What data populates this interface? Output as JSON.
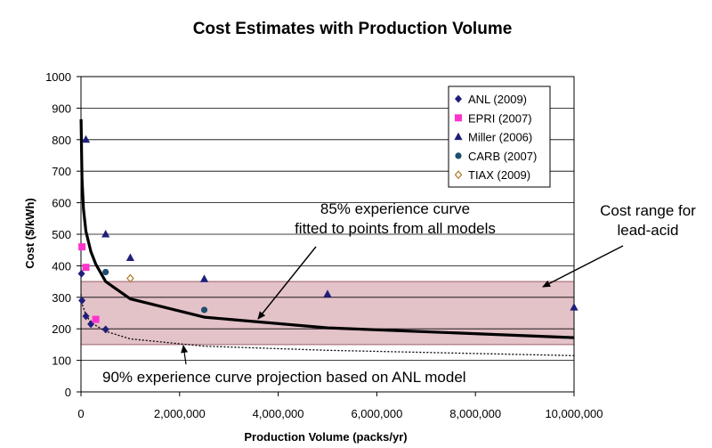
{
  "chart_data": {
    "type": "scatter",
    "title": "Cost Estimates with Production Volume",
    "xlabel": "Production Volume (packs/yr)",
    "ylabel": "Cost ($/kWh)",
    "xlim": [
      0,
      10000000
    ],
    "ylim": [
      0,
      1000
    ],
    "x_ticks": [
      0,
      2000000,
      4000000,
      6000000,
      8000000,
      10000000
    ],
    "x_tick_labels": [
      "0",
      "2,000,000",
      "4,000,000",
      "6,000,000",
      "8,000,000",
      "10,000,000"
    ],
    "y_ticks": [
      0,
      100,
      200,
      300,
      400,
      500,
      600,
      700,
      800,
      900,
      1000
    ],
    "y_tick_labels": [
      "0",
      "100",
      "200",
      "300",
      "400",
      "500",
      "600",
      "700",
      "800",
      "900",
      "1000"
    ],
    "grid": "horizontal",
    "legend_position": "top-right",
    "series": [
      {
        "name": "ANL (2009)",
        "marker": "diamond",
        "color": "#1f1f7a",
        "points": [
          [
            10000,
            375
          ],
          [
            20000,
            290
          ],
          [
            100000,
            240
          ],
          [
            200000,
            215
          ],
          [
            500000,
            198
          ]
        ]
      },
      {
        "name": "EPRI (2007)",
        "marker": "square",
        "color": "#ff33cc",
        "points": [
          [
            20000,
            460
          ],
          [
            100000,
            395
          ],
          [
            300000,
            230
          ]
        ]
      },
      {
        "name": "Miller (2006)",
        "marker": "triangle",
        "color": "#1f1f7a",
        "points": [
          [
            100000,
            800
          ],
          [
            500000,
            500
          ],
          [
            1000000,
            425
          ],
          [
            2500000,
            358
          ],
          [
            5000000,
            310
          ],
          [
            10000000,
            268
          ]
        ]
      },
      {
        "name": "CARB (2007)",
        "marker": "circle",
        "color": "#1f4f6f",
        "points": [
          [
            500000,
            380
          ],
          [
            2500000,
            260
          ]
        ]
      },
      {
        "name": "TIAX (2009)",
        "marker": "open-diamond",
        "color": "#b07d2a",
        "points": [
          [
            1000000,
            360
          ]
        ]
      }
    ],
    "fit_curve": {
      "label": "85% experience curve fitted to points from all models",
      "label_lines": [
        "85% experience curve",
        "fitted to points from all models"
      ],
      "points": [
        [
          2000,
          865
        ],
        [
          20000,
          680
        ],
        [
          50000,
          580
        ],
        [
          100000,
          510
        ],
        [
          200000,
          445
        ],
        [
          300000,
          405
        ],
        [
          500000,
          350
        ],
        [
          1000000,
          295
        ],
        [
          2500000,
          237
        ],
        [
          5000000,
          203
        ],
        [
          10000000,
          172
        ]
      ]
    },
    "projection_curve": {
      "label": "90% experience curve projection based on ANL model",
      "points": [
        [
          0,
          310
        ],
        [
          20000,
          280
        ],
        [
          100000,
          245
        ],
        [
          200000,
          220
        ],
        [
          500000,
          192
        ],
        [
          1000000,
          168
        ],
        [
          2500000,
          145
        ],
        [
          5000000,
          132
        ],
        [
          10000000,
          115
        ]
      ]
    },
    "lead_acid_band": {
      "label_lines": [
        "Cost range for",
        "lead-acid"
      ],
      "range": [
        150,
        350
      ],
      "color": "#e3c2c8"
    }
  }
}
